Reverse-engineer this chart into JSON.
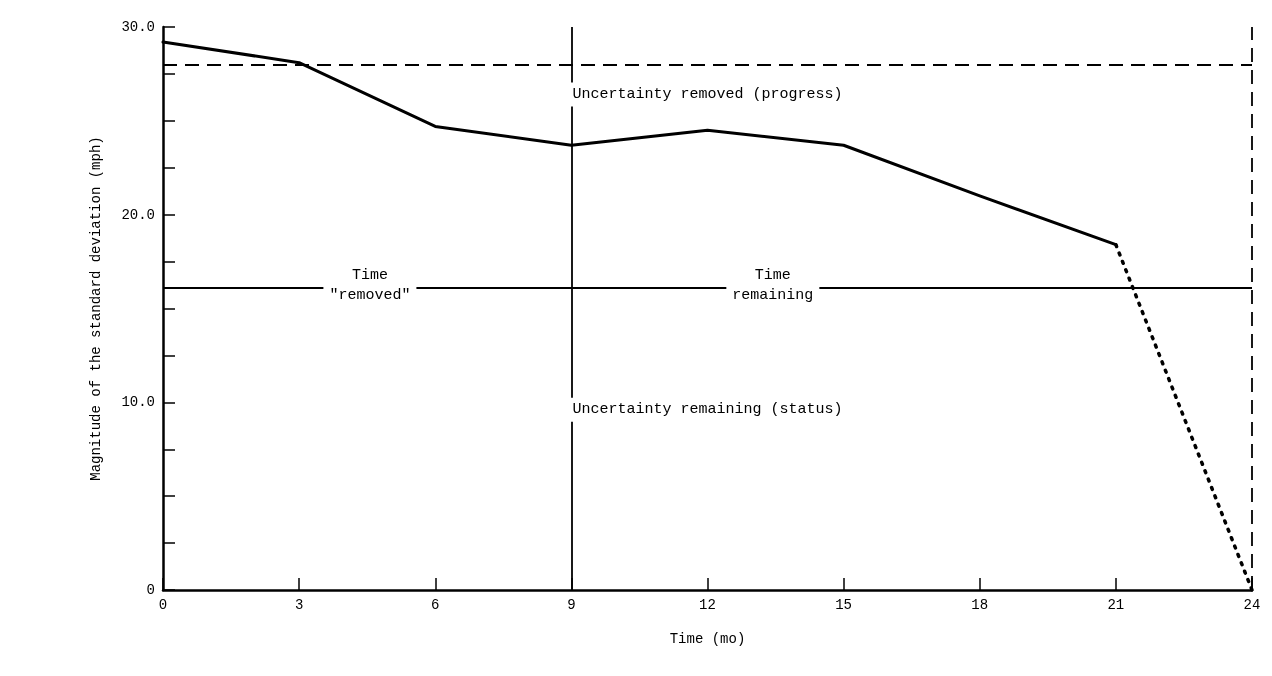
{
  "chart_data": {
    "type": "line",
    "xlabel": "Time (mo)",
    "ylabel": "Magnitude of the standard deviation (mph)",
    "series": [
      {
        "color": "#000000",
        "x": [
          0,
          3,
          6,
          9,
          12,
          15,
          18,
          21
        ],
        "values": [
          29.2,
          28.1,
          24.7,
          23.7,
          24.5,
          23.7,
          21.0,
          18.4
        ]
      },
      {
        "color": "#000000",
        "x": [
          21,
          24
        ],
        "values": [
          18.4,
          0
        ],
        "line_style": "dotted"
      }
    ],
    "xlim": [
      0,
      24
    ],
    "xticks": [
      0,
      3,
      6,
      9,
      12,
      15,
      18,
      21,
      24
    ],
    "ylim": [
      0,
      30
    ],
    "yticks": [
      0,
      {
        "value": 2.5,
        "label": null
      },
      {
        "value": 5,
        "label": null
      },
      {
        "value": 7.5,
        "label": null
      },
      {
        "value": 10,
        "label": "10.0"
      },
      {
        "value": 12.5,
        "label": null
      },
      {
        "value": 15,
        "label": null
      },
      {
        "value": 17.5,
        "label": null
      },
      {
        "value": 20,
        "label": "20.0"
      },
      {
        "value": 22.5,
        "label": null
      },
      {
        "value": 25,
        "label": null
      },
      {
        "value": 27.5,
        "label": null
      },
      {
        "value": 30,
        "label": "30.0"
      }
    ],
    "ref_lines": [
      {
        "axis": "y",
        "value": 28,
        "line_style": "dashed",
        "color": "#000000"
      },
      {
        "axis": "x",
        "value": 24,
        "line_style": "dashed",
        "color": "#000000"
      },
      {
        "axis": "y",
        "value": 16.1,
        "line_style": "solid",
        "color": "#000000"
      },
      {
        "axis": "x",
        "value": 9,
        "line_style": "solid",
        "color": "#000000"
      }
    ],
    "annotations": [
      "Uncertainty removed (progress)",
      "Time\n\"removed\"",
      "Time\nremaining",
      "Uncertainty remaining (status)"
    ],
    "grid": false,
    "marker": "none",
    "line_style": "solid"
  }
}
